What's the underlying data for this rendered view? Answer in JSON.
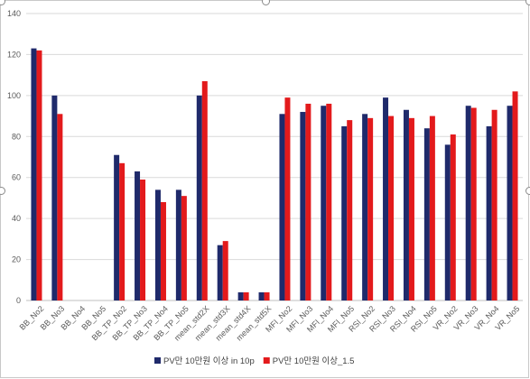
{
  "chart_data": {
    "type": "bar",
    "title": "",
    "xlabel": "",
    "ylabel": "",
    "ylim": [
      0,
      140
    ],
    "yticks": [
      0,
      20,
      40,
      60,
      80,
      100,
      120,
      140
    ],
    "grid": true,
    "legend": "bottom",
    "categories": [
      "BB_No2",
      "BB_No3",
      "BB_No4",
      "BB_No5",
      "BB_TP_No2",
      "BB_TP_No3",
      "BB_TP_No4",
      "BB_TP_No5",
      "mean_std2X",
      "mean_std3X",
      "mean_std4X",
      "mean_std5X",
      "MFI_No2",
      "MFI_No3",
      "MFI_No4",
      "MFI_No5",
      "RSI_No2",
      "RSI_No3",
      "RSI_No4",
      "RSI_No5",
      "VR_No2",
      "VR_No3",
      "VR_No4",
      "VR_No5"
    ],
    "series": [
      {
        "name": "PV만 10만원 이상 in 10p",
        "color": "#1f2a6b",
        "values": [
          123,
          100,
          0,
          0,
          71,
          63,
          54,
          54,
          100,
          27,
          4,
          4,
          91,
          92,
          95,
          85,
          91,
          99,
          93,
          84,
          76,
          95,
          85,
          95
        ]
      },
      {
        "name": "PV만 10만원 이상_1.5",
        "color": "#e31a1c",
        "values": [
          122,
          91,
          0,
          0,
          67,
          59,
          48,
          51,
          107,
          29,
          4,
          4,
          99,
          96,
          96,
          88,
          89,
          90,
          89,
          90,
          81,
          94,
          93,
          102
        ]
      }
    ]
  }
}
